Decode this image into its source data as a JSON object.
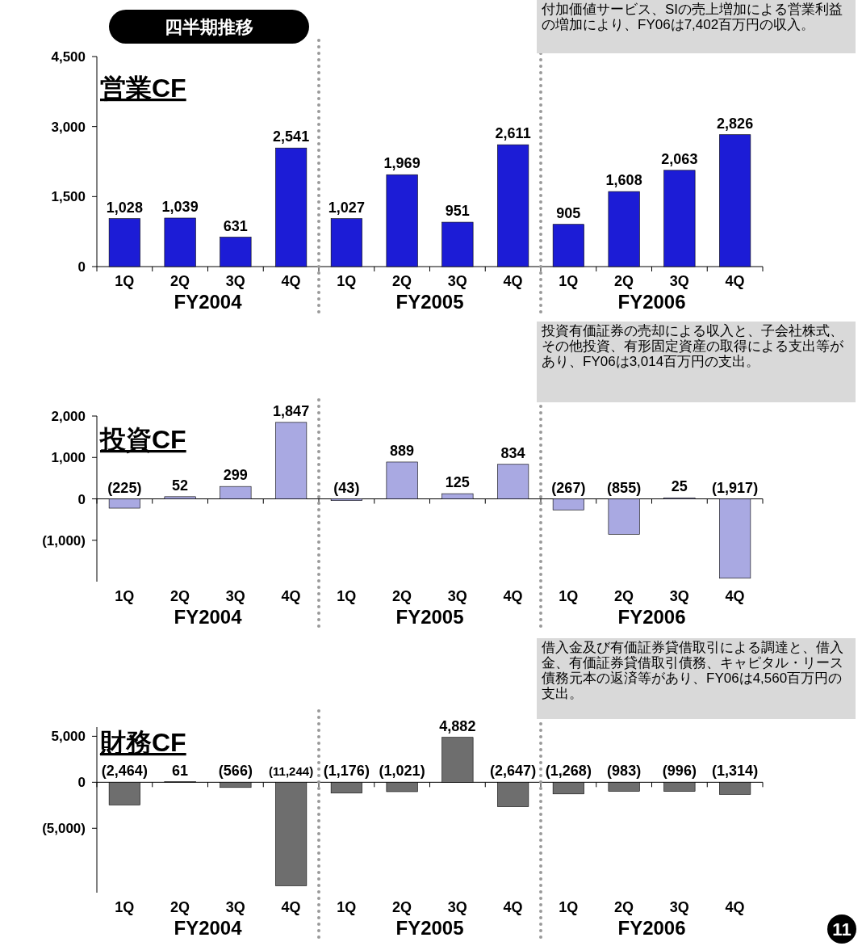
{
  "chart_data": [
    {
      "type": "bar",
      "title": "営業CF",
      "subtitle": "四半期推移",
      "categories": [
        "1Q",
        "2Q",
        "3Q",
        "4Q",
        "1Q",
        "2Q",
        "3Q",
        "4Q",
        "1Q",
        "2Q",
        "3Q",
        "4Q"
      ],
      "series": [
        {
          "color": "#1c1cd6",
          "values": [
            1028,
            1039,
            631,
            2541,
            1027,
            1969,
            951,
            2611,
            905,
            1608,
            2063,
            2826
          ],
          "value_labels": [
            "1,028",
            "1,039",
            "631",
            "2,541",
            "1,027",
            "1,969",
            "951",
            "2,611",
            "905",
            "1,608",
            "2,063",
            "2,826"
          ]
        }
      ],
      "ylim": [
        0,
        4500
      ],
      "yticks": [
        {
          "value": 0,
          "label": "0"
        },
        {
          "value": 1500,
          "label": "1,500"
        },
        {
          "value": 3000,
          "label": "3,000"
        },
        {
          "value": 4500,
          "label": "4,500"
        }
      ],
      "annotations": [
        "FY2004",
        "FY2005",
        "FY2006",
        "付加価値サービス、SIの売上増加による営業利益の増加により、FY06は7,402百万円の収入。"
      ]
    },
    {
      "type": "bar",
      "title": "投資CF",
      "categories": [
        "1Q",
        "2Q",
        "3Q",
        "4Q",
        "1Q",
        "2Q",
        "3Q",
        "4Q",
        "1Q",
        "2Q",
        "3Q",
        "4Q"
      ],
      "series": [
        {
          "color": "#a9a9e2",
          "values": [
            -225,
            52,
            299,
            1847,
            -43,
            889,
            125,
            834,
            -267,
            -855,
            25,
            -1917
          ],
          "value_labels": [
            "(225)",
            "52",
            "299",
            "1,847",
            "(43)",
            "889",
            "125",
            "834",
            "(267)",
            "(855)",
            "25",
            "(1,917)"
          ]
        }
      ],
      "ylim": [
        -2000,
        2000
      ],
      "yticks": [
        {
          "value": -1000,
          "label": "(1,000)"
        },
        {
          "value": 0,
          "label": "0"
        },
        {
          "value": 1000,
          "label": "1,000"
        },
        {
          "value": 2000,
          "label": "2,000"
        }
      ],
      "annotations": [
        "FY2004",
        "FY2005",
        "FY2006",
        "投資有価証券の売却による収入と、子会社株式、その他投資、有形固定資産の取得による支出等があり、FY06は3,014百万円の支出。"
      ]
    },
    {
      "type": "bar",
      "title": "財務CF",
      "categories": [
        "1Q",
        "2Q",
        "3Q",
        "4Q",
        "1Q",
        "2Q",
        "3Q",
        "4Q",
        "1Q",
        "2Q",
        "3Q",
        "4Q"
      ],
      "series": [
        {
          "color": "#6e6e6e",
          "values": [
            -2464,
            61,
            -566,
            -11244,
            -1176,
            -1021,
            4882,
            -2647,
            -1268,
            -983,
            -996,
            -1314
          ],
          "value_labels": [
            "(2,464)",
            "61",
            "(566)",
            "(11,244)",
            "(1,176)",
            "(1,021)",
            "4,882",
            "(2,647)",
            "(1,268)",
            "(983)",
            "(996)",
            "(1,314)"
          ]
        }
      ],
      "ylim": [
        -12000,
        6000
      ],
      "yticks": [
        {
          "value": -5000,
          "label": "(5,000)"
        },
        {
          "value": 0,
          "label": "0"
        },
        {
          "value": 5000,
          "label": "5,000"
        }
      ],
      "annotations": [
        "FY2004",
        "FY2005",
        "FY2006",
        "借入金及び有価証券貸借取引による調達と、借入金、有価証券貸借取引債務、キャピタル・リース債務元本の返済等があり、FY06は4,560百万円の支出。",
        "11"
      ]
    }
  ]
}
